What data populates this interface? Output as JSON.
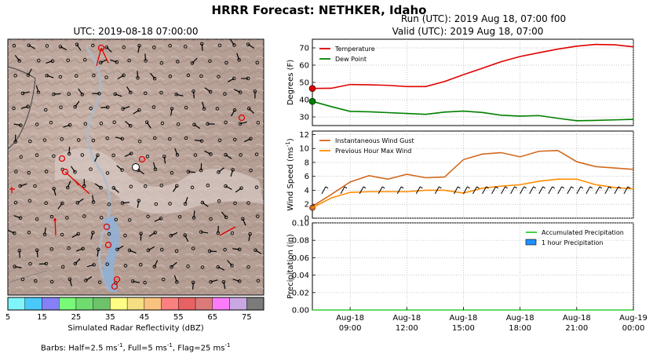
{
  "title": "HRRR Forecast: NETHKER, Idaho",
  "map": {
    "title": "UTC: 2019-08-18 07:00:00",
    "colorbar": {
      "label": "Simulated Radar Reflectivity (dBZ)",
      "ticks": [
        "5",
        "15",
        "25",
        "35",
        "45",
        "55",
        "65",
        "75"
      ],
      "colors": [
        "#7ff5fb",
        "#4bc8fa",
        "#8580f6",
        "#78fa78",
        "#70dc70",
        "#6ec26c",
        "#fdfd84",
        "#f5df85",
        "#fbc27f",
        "#fb8080",
        "#e76363",
        "#dc7a7a",
        "#fc7bfb",
        "#c8a7e3",
        "#7b7b7b"
      ]
    },
    "barb_note_prefix": "Barbs: Half=2.5 ms",
    "barb_note_mid1": ", Full=5 ms",
    "barb_note_mid2": ", Flag=25 ms",
    "barb_note_sup": "-1"
  },
  "run_text": "Run (UTC): 2019 Aug 18, 07:00 f00",
  "valid_text": "Valid (UTC): 2019 Aug 18, 07:00",
  "chart_data": [
    {
      "type": "line",
      "ylabel": "Degrees (F)",
      "ylim": [
        25,
        75
      ],
      "yticks": [
        30,
        40,
        50,
        60,
        70
      ],
      "x": [
        7,
        8,
        9,
        10,
        11,
        12,
        13,
        14,
        15,
        16,
        17,
        18,
        19,
        20,
        21,
        22,
        23,
        24
      ],
      "series": [
        {
          "name": "Temperature",
          "color": "#e00000",
          "values": [
            46.5,
            46.6,
            48.8,
            48.6,
            48.3,
            47.6,
            47.6,
            50.5,
            54.5,
            58.2,
            62.0,
            65.0,
            67.2,
            69.3,
            71.0,
            72.0,
            71.8,
            70.6
          ]
        },
        {
          "name": "Dew Point",
          "color": "#008000",
          "values": [
            39.0,
            36.0,
            33.2,
            33.0,
            32.5,
            32.0,
            31.5,
            32.8,
            33.4,
            32.6,
            31.0,
            30.5,
            30.8,
            29.2,
            27.8,
            28.0,
            28.3,
            28.6
          ]
        }
      ],
      "legend": "top-left"
    },
    {
      "type": "line",
      "ylabel": "Wind Speed (ms",
      "ylabel_sup": "-1",
      "ylim": [
        0,
        12.5
      ],
      "yticks": [
        0,
        2,
        4,
        6,
        8,
        10,
        12
      ],
      "x": [
        7,
        8,
        9,
        10,
        11,
        12,
        13,
        14,
        15,
        16,
        17,
        18,
        19,
        20,
        21,
        22,
        23,
        24
      ],
      "series": [
        {
          "name": "Instantaneous Wind Gust",
          "color": "#d2691e",
          "values": [
            1.7,
            3.4,
            5.2,
            6.1,
            5.6,
            6.3,
            5.8,
            5.9,
            8.4,
            9.2,
            9.4,
            8.8,
            9.6,
            9.7,
            8.1,
            7.4,
            7.2,
            7.0
          ]
        },
        {
          "name": "Previous Hour Max Wind",
          "color": "#ff8c00",
          "values": [
            1.5,
            2.9,
            3.7,
            3.8,
            3.8,
            3.8,
            4.0,
            4.0,
            3.6,
            4.3,
            4.6,
            4.8,
            5.3,
            5.6,
            5.6,
            4.8,
            4.4,
            4.2
          ]
        }
      ],
      "barb_level": 3.5,
      "legend": "top-left"
    },
    {
      "type": "line",
      "ylabel": "Precipitation (in)",
      "ylim": [
        0,
        0.1
      ],
      "yticks": [
        "0.00",
        "0.02",
        "0.04",
        "0.06",
        "0.08",
        "0.10"
      ],
      "x": [
        7,
        8,
        9,
        10,
        11,
        12,
        13,
        14,
        15,
        16,
        17,
        18,
        19,
        20,
        21,
        22,
        23,
        24
      ],
      "series": [
        {
          "name": "Accumulated Precipitation",
          "color": "#32cd32",
          "values": [
            0,
            0,
            0,
            0,
            0,
            0,
            0,
            0,
            0,
            0,
            0,
            0,
            0,
            0,
            0,
            0,
            0,
            0
          ]
        },
        {
          "name": "1 hour Precipitation",
          "color": "#1e90ff",
          "values": [
            0,
            0,
            0,
            0,
            0,
            0,
            0,
            0,
            0,
            0,
            0,
            0,
            0,
            0,
            0,
            0,
            0,
            0
          ]
        }
      ],
      "legend": "top-right",
      "xticks": [
        {
          "x": 9,
          "label1": "Aug-18",
          "label2": "09:00"
        },
        {
          "x": 12,
          "label1": "Aug-18",
          "label2": "12:00"
        },
        {
          "x": 15,
          "label1": "Aug-18",
          "label2": "15:00"
        },
        {
          "x": 18,
          "label1": "Aug-18",
          "label2": "18:00"
        },
        {
          "x": 21,
          "label1": "Aug-18",
          "label2": "21:00"
        },
        {
          "x": 24,
          "label1": "Aug-19",
          "label2": "00:00"
        }
      ]
    }
  ]
}
